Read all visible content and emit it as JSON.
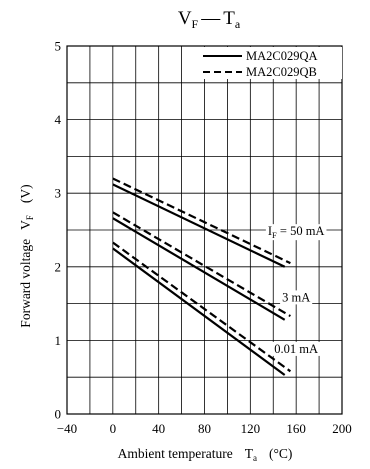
{
  "chart_data": {
    "type": "line",
    "title": {
      "main": "V",
      "main_sub": "F",
      "dash": "—",
      "rhs": "T",
      "rhs_sub": "a"
    },
    "xlabel": {
      "text": "Ambient temperature",
      "sym": "T",
      "sym_sub": "a",
      "unit": "(°C)"
    },
    "ylabel": {
      "text": "Forward voltage",
      "sym": "V",
      "sym_sub": "F",
      "unit": "(V)"
    },
    "xlim": [
      -40,
      200
    ],
    "ylim": [
      0,
      5
    ],
    "xticks": [
      -40,
      0,
      40,
      80,
      120,
      160,
      200
    ],
    "yticks": [
      0,
      1,
      2,
      3,
      4,
      5
    ],
    "grid": {
      "x_step": 20,
      "y_step": 0.5
    },
    "legend_position": "top-right",
    "series": [
      {
        "name": "MA2C029QA",
        "style": "solid",
        "lines": [
          {
            "x": [
              0,
              150
            ],
            "y": [
              3.12,
              2.0
            ]
          },
          {
            "x": [
              0,
              150
            ],
            "y": [
              2.66,
              1.28
            ]
          },
          {
            "x": [
              0,
              150
            ],
            "y": [
              2.25,
              0.53
            ]
          }
        ]
      },
      {
        "name": "MA2C029QB",
        "style": "dashed",
        "lines": [
          {
            "x": [
              0,
              155
            ],
            "y": [
              3.2,
              2.05
            ]
          },
          {
            "x": [
              0,
              155
            ],
            "y": [
              2.74,
              1.33
            ]
          },
          {
            "x": [
              0,
              155
            ],
            "y": [
              2.33,
              0.58
            ]
          }
        ]
      }
    ],
    "annotations": [
      {
        "text": "I",
        "sub": "F",
        "rest": " = 50 mA",
        "x": 160,
        "y": 2.43
      },
      {
        "text": "3 mA",
        "sub": "",
        "rest": "",
        "x": 160,
        "y": 1.53
      },
      {
        "text": "0.01 mA",
        "sub": "",
        "rest": "",
        "x": 160,
        "y": 0.83
      }
    ]
  }
}
